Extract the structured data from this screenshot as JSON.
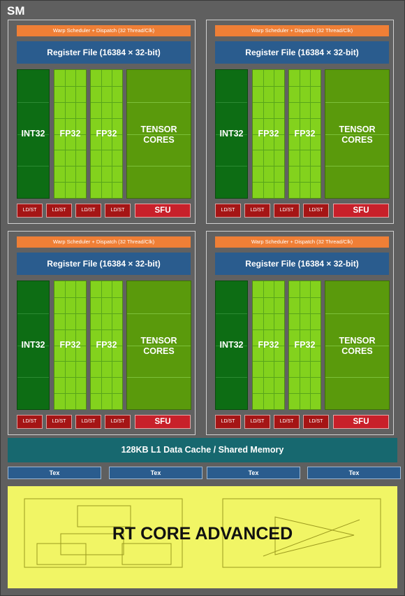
{
  "diagram": {
    "title": "SM",
    "quadrant": {
      "warp_scheduler": "Warp Scheduler + Dispatch (32 Thread/Clk)",
      "register_file": "Register File (16384 × 32-bit)",
      "int32": "INT32",
      "fp32": "FP32",
      "tensor_line1": "TENSOR",
      "tensor_line2": "CORES",
      "ldst": "LD/ST",
      "sfu": "SFU"
    },
    "l1_cache": "128KB L1 Data Cache / Shared Memory",
    "tex": "Tex",
    "rt_core": "RT CORE ADVANCED"
  },
  "colors": {
    "warp": "#ef7f36",
    "register": "#2a5c8e",
    "int32": "#0d6d14",
    "fp32": "#83d21d",
    "tensor": "#5a9a0c",
    "ldst": "#a51515",
    "sfu": "#c8202a",
    "l1": "#17686f",
    "rt": "#f1f565"
  }
}
